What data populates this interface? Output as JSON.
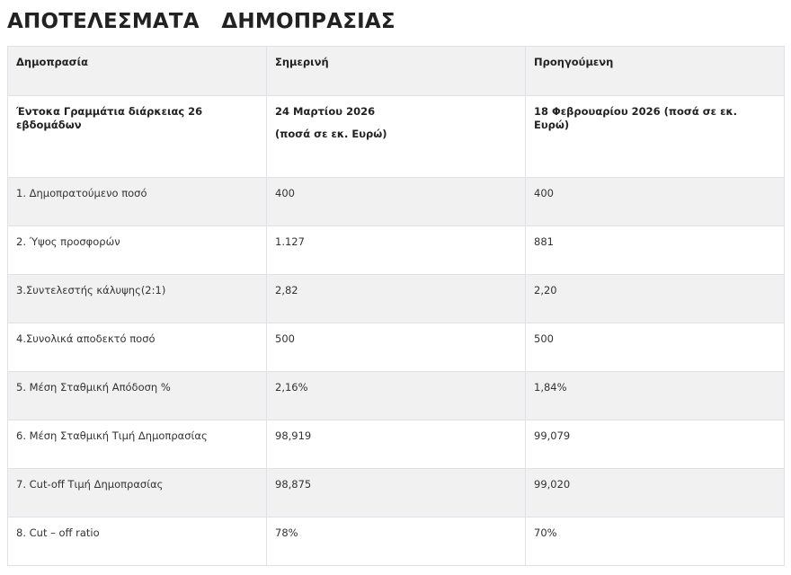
{
  "page": {
    "title": "ΑΠΟΤΕΛΕΣΜΑΤΑ   ΔΗΜΟΠΡΑΣΙΑΣ"
  },
  "table": {
    "headers": [
      "Δημοπρασία",
      "Σημερινή",
      "Προηγούμενη"
    ],
    "subheader": {
      "auction": "Έντοκα Γραμμάτια διάρκειας 26 εβδομάδων",
      "current_date": "24 Μαρτίου 2026",
      "current_note": "(ποσά σε εκ. Ευρώ)",
      "previous": "18 Φεβρουαρίου 2026 (ποσά σε εκ. Ευρώ)"
    },
    "rows": [
      {
        "label": "1. Δημοπρατούμενο ποσό",
        "current": "400",
        "previous": "400"
      },
      {
        "label": "2. Ύψος προσφορών",
        "current": "1.127",
        "previous": "881"
      },
      {
        "label": "3.Συντελεστής κάλυψης(2:1)",
        "current": "2,82",
        "previous": "2,20"
      },
      {
        "label": "4.Συνολικά αποδεκτό ποσό",
        "current": "500",
        "previous": "500"
      },
      {
        "label": "5. Μέση Σταθμική Απόδοση %",
        "current": "2,16%",
        "previous": "1,84%"
      },
      {
        "label": "6. Μέση Σταθμική Τιμή Δημοπρασίας",
        "current": "98,919",
        "previous": "99,079"
      },
      {
        "label": "7. Cut-off Τιμή Δημοπρασίας",
        "current": "98,875",
        "previous": "99,020"
      },
      {
        "label": "8. Cut – off ratio",
        "current": "78%",
        "previous": "70%"
      }
    ]
  },
  "colors": {
    "stripe": "#f1f1f1",
    "border": "#dfe1e6",
    "text": "#333333",
    "title": "#222222"
  }
}
